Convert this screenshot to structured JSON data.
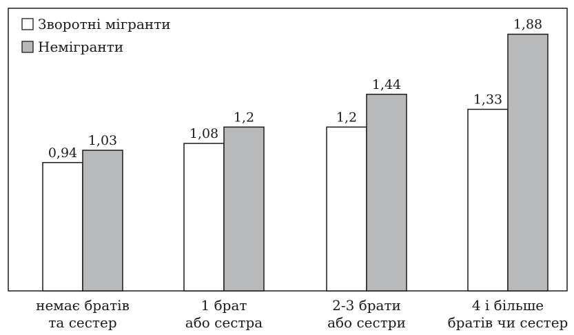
{
  "chart_data": {
    "type": "bar",
    "title": "",
    "xlabel": "",
    "ylabel": "",
    "ylim": [
      0,
      2.07
    ],
    "grid": false,
    "legend_position": "top-left",
    "categories": [
      [
        "немає братів",
        "та сестер"
      ],
      [
        "1 брат",
        "або сестра"
      ],
      [
        "2-3 брати",
        "або сестри"
      ],
      [
        "4 і більше",
        "братів чи сестер"
      ]
    ],
    "series": [
      {
        "name": "Зворотні мігранти",
        "color": "#ffffff",
        "values": [
          0.94,
          1.08,
          1.2,
          1.33
        ],
        "labels": [
          "0,94",
          "1,08",
          "1,2",
          "1,33"
        ]
      },
      {
        "name": "Немігранти",
        "color": "#b8b9bb",
        "values": [
          1.03,
          1.2,
          1.44,
          1.88
        ],
        "labels": [
          "1,03",
          "1,2",
          "1,44",
          "1,88"
        ]
      }
    ]
  }
}
